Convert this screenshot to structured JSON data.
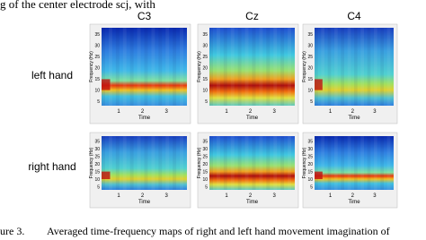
{
  "header_text": "g of the center electrode scj, with",
  "columns": [
    "C3",
    "Cz",
    "C4"
  ],
  "rows": [
    "left hand",
    "right hand"
  ],
  "panel_axes": {
    "ylabel": "Frequency (Hz)",
    "xlabel": "Time",
    "yticks": [
      35,
      30,
      25,
      20,
      15,
      10,
      5
    ],
    "xticks": [
      1,
      2,
      3
    ]
  },
  "caption": {
    "label": "ure 3.",
    "text": "Averaged time-frequency maps of right and left hand movement imagination of"
  }
}
